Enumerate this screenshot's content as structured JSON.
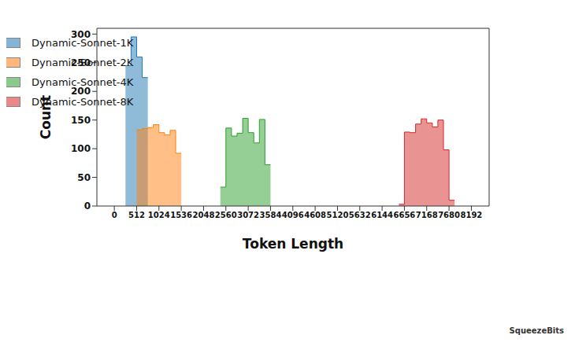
{
  "chart_data": {
    "type": "histogram",
    "x_label": "Token Length",
    "y_label": "Count",
    "xlim": [
      -400,
      8600
    ],
    "xticks": [
      0,
      512,
      1024,
      1536,
      2048,
      2560,
      3072,
      3584,
      4096,
      4608,
      5120,
      5632,
      6144,
      6656,
      7168,
      7680,
      8192
    ],
    "ylim": [
      0,
      310
    ],
    "yticks": [
      0,
      50,
      100,
      150,
      200,
      250,
      300
    ],
    "grid": false,
    "legend": "upper right",
    "annotations": [
      "SqueezeBits"
    ],
    "series": [
      {
        "name": "Dynamic-Sonnet-1K",
        "color": "#1f77b4",
        "bins": [
          256,
          384,
          512,
          640,
          768
        ],
        "values": [
          245,
          295,
          260,
          224
        ]
      },
      {
        "name": "Dynamic-Sonnet-2K",
        "color": "#ff7f0e",
        "bins": [
          512,
          640,
          768,
          896,
          1024,
          1152,
          1280,
          1408,
          1536
        ],
        "values": [
          133,
          135,
          137,
          142,
          128,
          124,
          132,
          92
        ]
      },
      {
        "name": "Dynamic-Sonnet-4K",
        "color": "#2ca02c",
        "bins": [
          2432,
          2560,
          2688,
          2816,
          2944,
          3072,
          3200,
          3328,
          3456,
          3584
        ],
        "values": [
          33,
          136,
          122,
          127,
          153,
          128,
          110,
          151,
          72
        ]
      },
      {
        "name": "Dynamic-Sonnet-8K",
        "color": "#d62728",
        "bins": [
          6528,
          6656,
          6784,
          6912,
          7040,
          7168,
          7296,
          7424,
          7552,
          7680,
          7808
        ],
        "values": [
          3,
          129,
          128,
          143,
          152,
          145,
          138,
          150,
          98,
          10
        ]
      }
    ]
  }
}
